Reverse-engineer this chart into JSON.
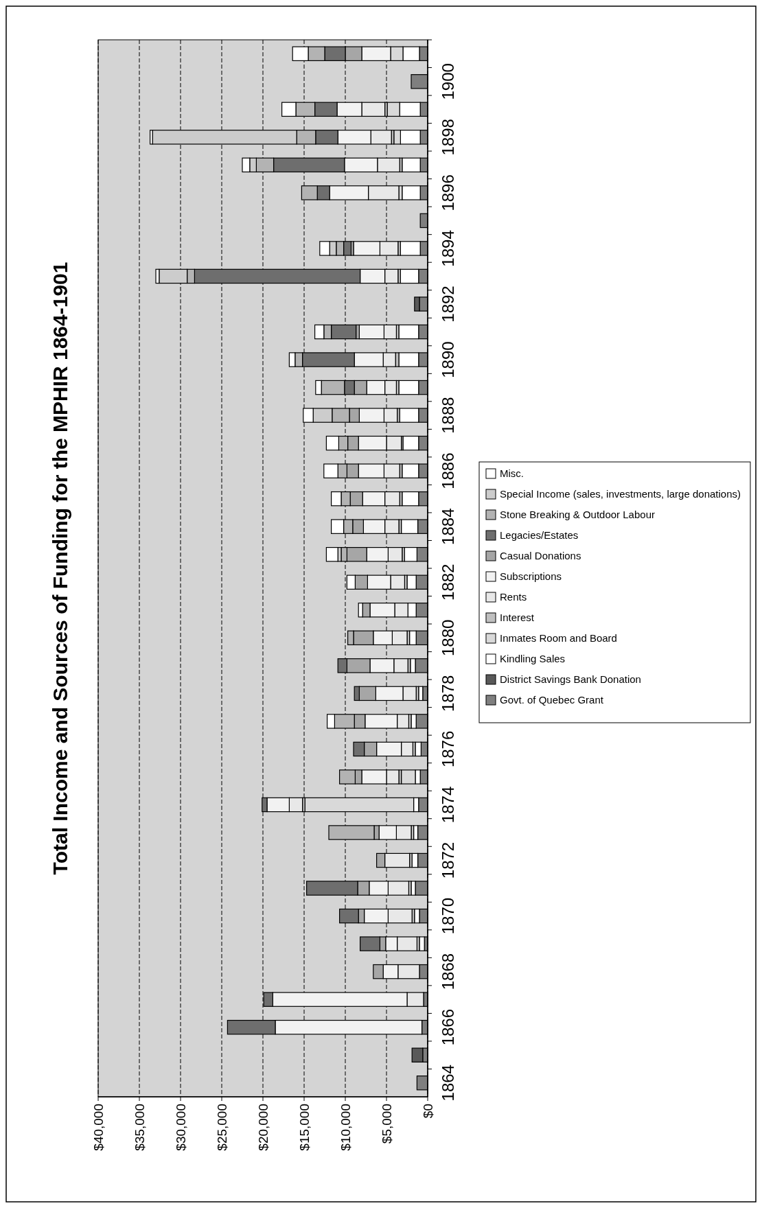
{
  "chart_data": {
    "type": "bar",
    "stacked": true,
    "orientation": "horizontal",
    "title": "Total Income and Sources of Funding for the MPHIR 1864-1901",
    "categories": [
      null,
      "1900",
      null,
      "1898",
      null,
      "1896",
      null,
      "1894",
      null,
      "1892",
      null,
      "1890",
      null,
      "1888",
      null,
      "1886",
      null,
      "1884",
      null,
      "1882",
      null,
      "1880",
      null,
      "1878",
      null,
      "1876",
      null,
      "1874",
      null,
      "1872",
      null,
      "1870",
      null,
      "1868",
      null,
      "1866",
      null,
      "1864"
    ],
    "xlim": [
      40000,
      0
    ],
    "xticks": [
      {
        "value": 40000,
        "label": "$40,000"
      },
      {
        "value": 35000,
        "label": "$35,000"
      },
      {
        "value": 30000,
        "label": "$30,000"
      },
      {
        "value": 25000,
        "label": "$25,000"
      },
      {
        "value": 20000,
        "label": "$20,000"
      },
      {
        "value": 15000,
        "label": "$15,000"
      },
      {
        "value": 10000,
        "label": "$10,000"
      },
      {
        "value": 5000,
        "label": "$5,000"
      },
      {
        "value": 0,
        "label": "$0"
      }
    ],
    "grid": "x",
    "legend": "right",
    "series": [
      {
        "name": "Govt. of Quebec Grant",
        "color": "#7f7f7f",
        "values": [
          1000,
          2000,
          900,
          900,
          900,
          900,
          900,
          900,
          1100,
          1000,
          1100,
          1100,
          1100,
          1100,
          1100,
          1100,
          1100,
          1200,
          1300,
          1400,
          1400,
          1400,
          1500,
          600,
          1400,
          800,
          900,
          1100,
          1200,
          1200,
          1500,
          1000,
          400,
          1000,
          500,
          700,
          600,
          1300
        ]
      },
      {
        "name": "District Savings Bank Donation",
        "color": "#595959",
        "values": [
          0,
          0,
          0,
          0,
          0,
          0,
          0,
          0,
          0,
          600,
          0,
          0,
          0,
          0,
          0,
          0,
          0,
          0,
          0,
          0,
          0,
          0,
          0,
          0,
          0,
          0,
          0,
          0,
          0,
          0,
          0,
          0,
          0,
          0,
          0,
          0,
          1300,
          0
        ]
      },
      {
        "name": "Kindling Sales",
        "color": "#ffffff",
        "values": [
          2000,
          0,
          2500,
          2400,
          2200,
          2200,
          0,
          2400,
          2200,
          0,
          2400,
          2400,
          2400,
          2300,
          1900,
          2000,
          2000,
          2000,
          1500,
          1100,
          1000,
          800,
          600,
          500,
          600,
          700,
          600,
          600,
          500,
          700,
          500,
          600,
          600,
          0,
          0,
          0,
          0,
          0
        ]
      },
      {
        "name": "Inmates Room and Board",
        "color": "#d9d9d9",
        "values": [
          1500,
          0,
          1500,
          800,
          0,
          400,
          0,
          0,
          0,
          0,
          0,
          0,
          0,
          0,
          0,
          0,
          0,
          0,
          0,
          0,
          0,
          0,
          0,
          0,
          0,
          0,
          1700,
          13200,
          0,
          0,
          0,
          0,
          0,
          0,
          0,
          0,
          0,
          0
        ]
      },
      {
        "name": "Interest",
        "color": "#bfbfbf",
        "values": [
          0,
          0,
          300,
          300,
          300,
          0,
          0,
          300,
          300,
          0,
          300,
          400,
          300,
          300,
          200,
          300,
          300,
          300,
          300,
          300,
          0,
          300,
          300,
          300,
          300,
          300,
          300,
          300,
          300,
          300,
          300,
          300,
          300,
          0,
          0,
          0,
          0,
          0
        ]
      },
      {
        "name": "Rents",
        "color": "#e8e8e8",
        "values": [
          0,
          0,
          2800,
          2500,
          2700,
          3700,
          0,
          2200,
          1600,
          0,
          1500,
          1500,
          1400,
          1600,
          1800,
          1900,
          1800,
          1700,
          1700,
          1700,
          1600,
          1800,
          1700,
          1600,
          1400,
          1400,
          1500,
          1600,
          1800,
          3000,
          2500,
          2900,
          2400,
          2600,
          2000,
          0,
          0,
          0
        ]
      },
      {
        "name": "Subscriptions",
        "color": "#f2f2f2",
        "values": [
          3500,
          0,
          3000,
          4000,
          4000,
          4700,
          0,
          3200,
          3000,
          0,
          3000,
          3500,
          2200,
          3000,
          3400,
          3100,
          2700,
          2600,
          2600,
          2800,
          3000,
          2300,
          2900,
          3300,
          3900,
          3000,
          3000,
          2700,
          2100,
          0,
          2300,
          2900,
          1400,
          1800,
          16300,
          17800,
          0,
          0
        ]
      },
      {
        "name": "Casual Donations",
        "color": "#a6a6a6",
        "values": [
          2000,
          0,
          0,
          0,
          0,
          0,
          0,
          300,
          0,
          0,
          400,
          0,
          1500,
          1200,
          1300,
          1400,
          1500,
          1300,
          2400,
          1500,
          900,
          2400,
          2800,
          2000,
          1300,
          1500,
          800,
          0,
          600,
          1000,
          1400,
          700,
          700,
          1200,
          0,
          0,
          0,
          0
        ]
      },
      {
        "name": "Legacies/Estates",
        "color": "#6e6e6e",
        "values": [
          2500,
          0,
          2700,
          2700,
          8600,
          1500,
          0,
          900,
          20100,
          0,
          3000,
          6300,
          1200,
          0,
          0,
          0,
          0,
          0,
          0,
          0,
          0,
          0,
          1100,
          600,
          0,
          1300,
          0,
          600,
          0,
          0,
          6200,
          2300,
          2400,
          0,
          1100,
          5800,
          0,
          0
        ]
      },
      {
        "name": "Stone Breaking & Outdoor Labour",
        "color": "#b3b3b3",
        "values": [
          2000,
          0,
          2300,
          2300,
          2100,
          1900,
          0,
          900,
          900,
          0,
          900,
          900,
          2800,
          2100,
          1100,
          1100,
          1100,
          1100,
          700,
          0,
          0,
          700,
          0,
          0,
          2400,
          0,
          1900,
          0,
          5500,
          0,
          0,
          0,
          0,
          0,
          0,
          0,
          0,
          0
        ]
      },
      {
        "name": "Special Income (sales, investments, large donations)",
        "color": "#cccccc",
        "values": [
          0,
          0,
          0,
          17500,
          800,
          0,
          0,
          800,
          3400,
          0,
          0,
          0,
          0,
          2300,
          0,
          0,
          0,
          0,
          400,
          0,
          0,
          0,
          0,
          0,
          0,
          0,
          0,
          0,
          0,
          0,
          0,
          0,
          0,
          0,
          0,
          0,
          0,
          0
        ]
      },
      {
        "name": "Misc.",
        "color": "#ffffff",
        "values": [
          1900,
          0,
          1700,
          300,
          900,
          0,
          0,
          1200,
          400,
          0,
          1100,
          700,
          700,
          1200,
          1500,
          1700,
          1200,
          1500,
          1400,
          1000,
          500,
          0,
          0,
          0,
          900,
          0,
          0,
          0,
          0,
          0,
          0,
          0,
          0,
          0,
          0,
          0,
          0,
          0
        ]
      }
    ]
  }
}
